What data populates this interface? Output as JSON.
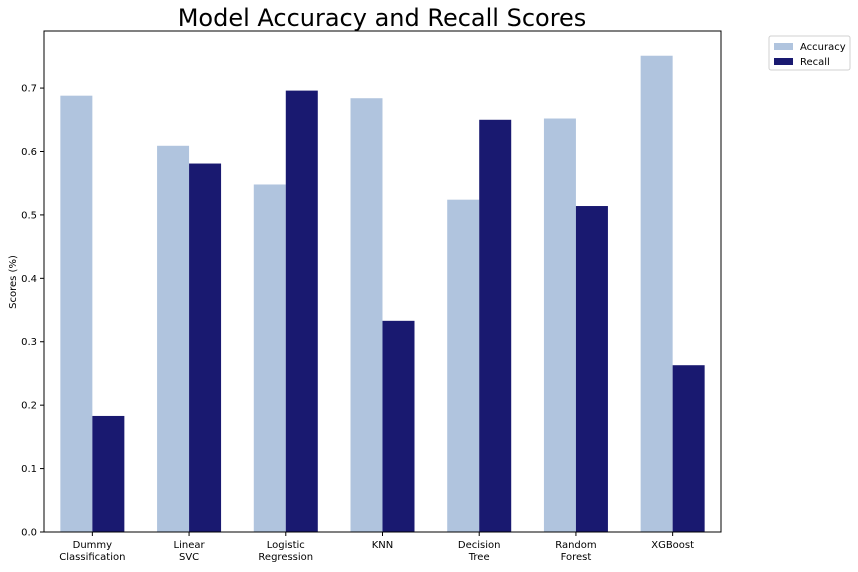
{
  "chart_data": {
    "type": "bar",
    "title": "Model Accuracy and Recall Scores",
    "xlabel": "",
    "ylabel": "Scores (%)",
    "ylim": [
      0,
      0.79
    ],
    "yticks": [
      "0.0",
      "0.1",
      "0.2",
      "0.3",
      "0.4",
      "0.5",
      "0.6",
      "0.7"
    ],
    "categories": [
      [
        "Dummy",
        "Classification"
      ],
      [
        "Linear",
        "SVC"
      ],
      [
        "Logistic",
        "Regression"
      ],
      [
        "KNN"
      ],
      [
        "Decision",
        "Tree"
      ],
      [
        "Random",
        "Forest"
      ],
      [
        "XGBoost"
      ]
    ],
    "series": [
      {
        "name": "Accuracy",
        "color": "#b0c4de",
        "values": [
          0.688,
          0.609,
          0.548,
          0.684,
          0.524,
          0.652,
          0.751
        ]
      },
      {
        "name": "Recall",
        "color": "#191970",
        "values": [
          0.183,
          0.581,
          0.696,
          0.333,
          0.65,
          0.514,
          0.263
        ]
      }
    ],
    "legend": "outside-top-right",
    "grid": false
  }
}
